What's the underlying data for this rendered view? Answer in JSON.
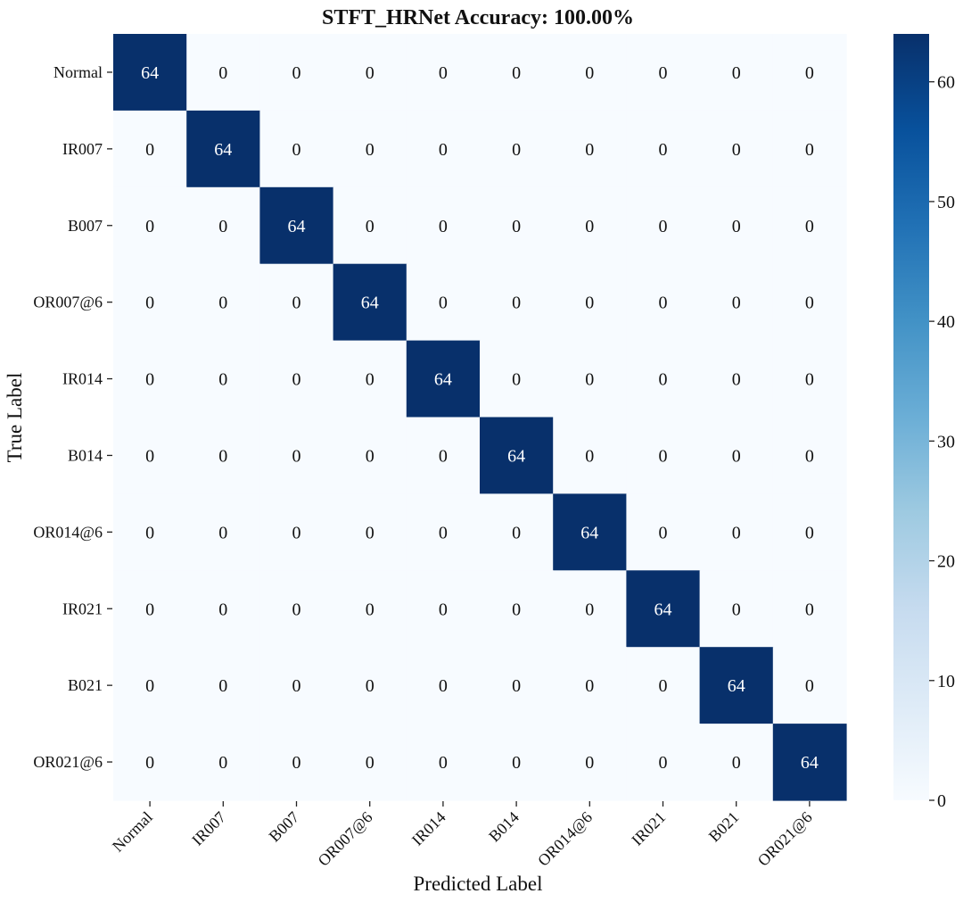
{
  "chart_data": {
    "type": "heatmap",
    "title": "STFT_HRNet  Accuracy: 100.00%",
    "xlabel": "Predicted Label",
    "ylabel": "True Label",
    "x_categories": [
      "Normal",
      "IR007",
      "B007",
      "OR007@6",
      "IR014",
      "B014",
      "OR014@6",
      "IR021",
      "B021",
      "OR021@6"
    ],
    "y_categories": [
      "Normal",
      "IR007",
      "B007",
      "OR007@6",
      "IR014",
      "B014",
      "OR014@6",
      "IR021",
      "B021",
      "OR021@6"
    ],
    "values": [
      [
        64,
        0,
        0,
        0,
        0,
        0,
        0,
        0,
        0,
        0
      ],
      [
        0,
        64,
        0,
        0,
        0,
        0,
        0,
        0,
        0,
        0
      ],
      [
        0,
        0,
        64,
        0,
        0,
        0,
        0,
        0,
        0,
        0
      ],
      [
        0,
        0,
        0,
        64,
        0,
        0,
        0,
        0,
        0,
        0
      ],
      [
        0,
        0,
        0,
        0,
        64,
        0,
        0,
        0,
        0,
        0
      ],
      [
        0,
        0,
        0,
        0,
        0,
        64,
        0,
        0,
        0,
        0
      ],
      [
        0,
        0,
        0,
        0,
        0,
        0,
        64,
        0,
        0,
        0
      ],
      [
        0,
        0,
        0,
        0,
        0,
        0,
        0,
        64,
        0,
        0
      ],
      [
        0,
        0,
        0,
        0,
        0,
        0,
        0,
        0,
        64,
        0
      ],
      [
        0,
        0,
        0,
        0,
        0,
        0,
        0,
        0,
        0,
        64
      ]
    ],
    "colormap": "Blues",
    "colorbar": {
      "min": 0,
      "max": 64,
      "ticks": [
        0,
        10,
        20,
        30,
        40,
        50,
        60
      ]
    },
    "legend": "colorbar-right"
  },
  "colors": {
    "low": "#f7fbff",
    "high": "#08306b",
    "text_on_low": "#111111",
    "text_on_high": "#ffffff"
  }
}
